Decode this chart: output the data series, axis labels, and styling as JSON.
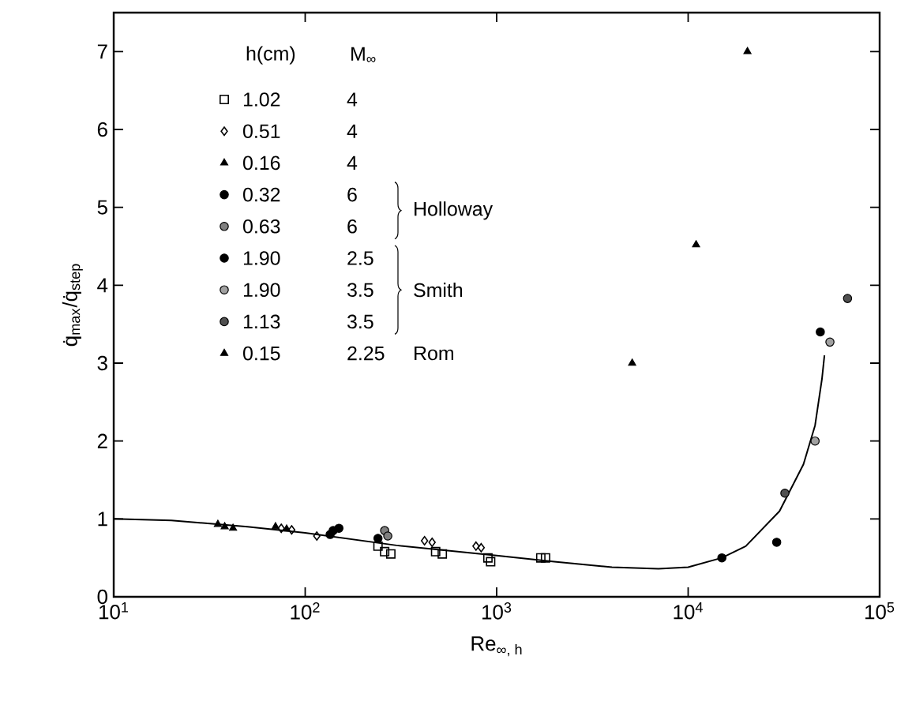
{
  "chart_data": {
    "type": "scatter",
    "xlabel": "Re$_{∞, h}$",
    "ylabel": "q̇$_{max}$/q̇$_{step}$",
    "legend_title": "h(cm)",
    "log": "x",
    "legend": "top left",
    "xlim": [
      10,
      100000
    ],
    "ylim": [
      0,
      7.5
    ],
    "xticks": [
      {
        "value": 10,
        "label": "10$^{1}$"
      },
      {
        "value": 100,
        "label": "10$^{2}$"
      },
      {
        "value": 1000,
        "label": "10$^{3}$"
      },
      {
        "value": 10000,
        "label": "10$^{4}$"
      },
      {
        "value": 100000,
        "label": "10$^{5}$"
      }
    ],
    "yticks": [
      0,
      1,
      2,
      3,
      4,
      5,
      6,
      7
    ],
    "annotations": [
      "M$_{∞}$",
      "4",
      "4",
      "4",
      "6",
      "6",
      "2.5",
      "3.5",
      "3.5",
      "2.25",
      "Holloway",
      "Smith",
      "Rom"
    ],
    "series": [
      {
        "name": "1.02",
        "color": "#000000",
        "marker": "square",
        "x": [
          240,
          250,
          260,
          280,
          480,
          520,
          900,
          930,
          1700,
          1800
        ],
        "values": [
          0.65,
          null,
          0.58,
          0.55,
          0.58,
          0.55,
          0.5,
          0.45,
          0.5,
          0.5
        ]
      },
      {
        "name": "0.51",
        "color": "#000000",
        "marker": "diamond",
        "x": [
          75,
          85,
          115,
          420,
          460,
          780,
          830
        ],
        "values": [
          0.88,
          0.86,
          0.78,
          0.72,
          0.7,
          0.65,
          0.63
        ]
      },
      {
        "name": "0.16",
        "color": "#000000",
        "marker": "triangle",
        "x": [
          35,
          38,
          42,
          70,
          80
        ],
        "values": [
          0.93,
          0.9,
          0.88,
          0.9,
          0.87
        ]
      },
      {
        "name": "0.32",
        "color": "#000000",
        "marker": "circle",
        "x": [
          135,
          140,
          150,
          240
        ],
        "values": [
          0.8,
          0.85,
          0.88,
          0.75
        ]
      },
      {
        "name": "0.63",
        "color": "#808080",
        "marker": "circle",
        "x": [
          260,
          270
        ],
        "values": [
          0.85,
          0.78
        ]
      },
      {
        "name": "1.90",
        "color": "#000000",
        "marker": "circle",
        "x": [
          15000,
          29000,
          49000
        ],
        "values": [
          0.5,
          0.7,
          3.4
        ]
      },
      {
        "name": "1.90",
        "color": "#a0a0a0",
        "marker": "circle",
        "x": [
          46000,
          55000
        ],
        "values": [
          2.0,
          3.27
        ]
      },
      {
        "name": "1.13",
        "color": "#505050",
        "marker": "circle",
        "x": [
          32000,
          68000
        ],
        "values": [
          1.33,
          3.83
        ]
      },
      {
        "name": "0.15",
        "color": "#000000",
        "marker": "triangle",
        "x": [
          5100,
          11000,
          20400
        ],
        "values": [
          3.0,
          4.52,
          7.0
        ]
      },
      {
        "type": "line",
        "color": "#000000",
        "marker": "none",
        "x": [
          10,
          20,
          50,
          100,
          300,
          1000,
          2000,
          4000,
          7000,
          10000,
          15000,
          20000,
          30000,
          40000,
          46000,
          50000,
          51500
        ],
        "values": [
          1.0,
          0.98,
          0.9,
          0.82,
          0.66,
          0.53,
          0.45,
          0.38,
          0.36,
          0.38,
          0.5,
          0.65,
          1.1,
          1.7,
          2.2,
          2.8,
          3.1
        ]
      }
    ]
  }
}
